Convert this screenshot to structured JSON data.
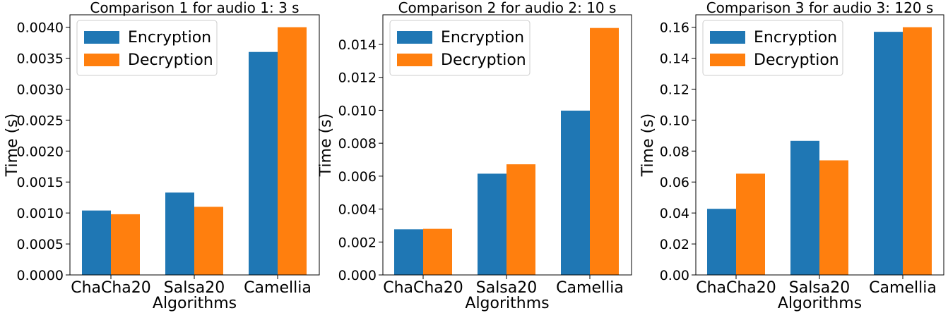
{
  "chart_data": [
    {
      "type": "bar",
      "title": "Comparison 1 for audio 1: 3 s",
      "xlabel": "Algorithms",
      "ylabel": "Time (s)",
      "categories": [
        "ChaCha20",
        "Salsa20",
        "Camellia"
      ],
      "series": [
        {
          "name": "Encryption",
          "values": [
            0.00104,
            0.00133,
            0.0036
          ]
        },
        {
          "name": "Decryption",
          "values": [
            0.00098,
            0.0011,
            0.004
          ]
        }
      ],
      "ylim": [
        0,
        0.0042
      ],
      "yticks": [
        0.0,
        0.0005,
        0.001,
        0.0015,
        0.002,
        0.0025,
        0.003,
        0.0035,
        0.004
      ],
      "ytick_labels": [
        "0.0000",
        "0.0005",
        "0.0010",
        "0.0015",
        "0.0020",
        "0.0025",
        "0.0030",
        "0.0035",
        "0.0040"
      ],
      "legend": "top-left",
      "grid": false
    },
    {
      "type": "bar",
      "title": "Comparison 2 for audio 2: 10 s",
      "xlabel": "Algorithms",
      "ylabel": "Time (s)",
      "categories": [
        "ChaCha20",
        "Salsa20",
        "Camellia"
      ],
      "series": [
        {
          "name": "Encryption",
          "values": [
            0.00277,
            0.00615,
            0.00998
          ]
        },
        {
          "name": "Decryption",
          "values": [
            0.0028,
            0.00672,
            0.015
          ]
        }
      ],
      "ylim": [
        0,
        0.0158
      ],
      "yticks": [
        0.0,
        0.002,
        0.004,
        0.006,
        0.008,
        0.01,
        0.012,
        0.014
      ],
      "ytick_labels": [
        "0.000",
        "0.002",
        "0.004",
        "0.006",
        "0.008",
        "0.010",
        "0.012",
        "0.014"
      ],
      "legend": "top-left",
      "grid": false
    },
    {
      "type": "bar",
      "title": "Comparison 3 for audio 3: 120 s",
      "xlabel": "Algorithms",
      "ylabel": "Time (s)",
      "categories": [
        "ChaCha20",
        "Salsa20",
        "Camellia"
      ],
      "series": [
        {
          "name": "Encryption",
          "values": [
            0.0427,
            0.0866,
            0.157
          ]
        },
        {
          "name": "Decryption",
          "values": [
            0.0654,
            0.074,
            0.16
          ]
        }
      ],
      "ylim": [
        0,
        0.168
      ],
      "yticks": [
        0.0,
        0.02,
        0.04,
        0.06,
        0.08,
        0.1,
        0.12,
        0.14,
        0.16
      ],
      "ytick_labels": [
        "0.00",
        "0.02",
        "0.04",
        "0.06",
        "0.08",
        "0.10",
        "0.12",
        "0.14",
        "0.16"
      ],
      "legend": "top-left",
      "grid": false
    }
  ],
  "colors": {
    "encryption": "#1f77b4",
    "decryption": "#ff7f0e"
  }
}
